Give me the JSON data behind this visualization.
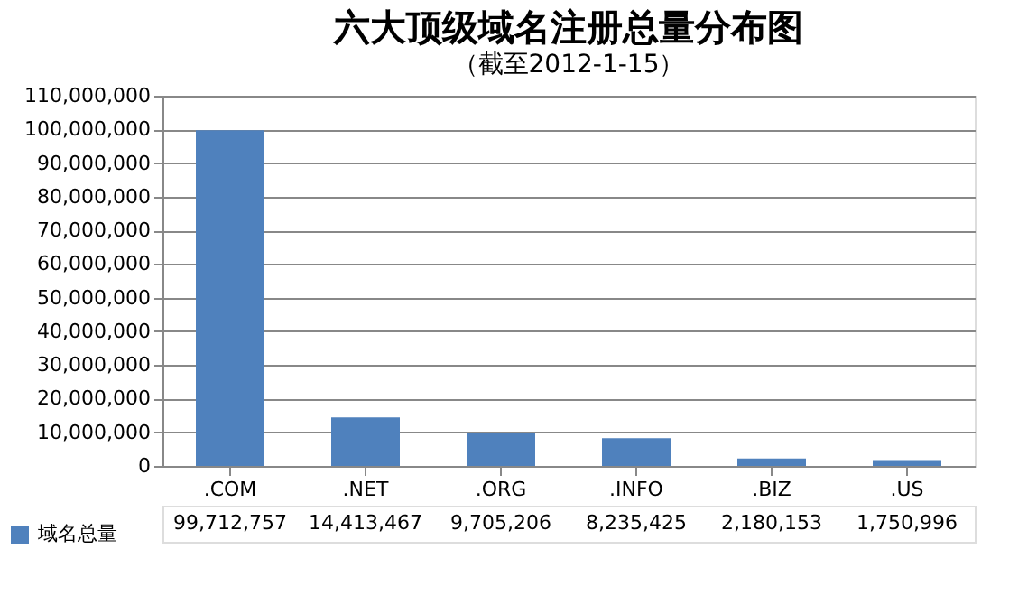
{
  "chart_data": {
    "type": "bar",
    "title": "六大顶级域名注册总量分布图",
    "subtitle": "（截至2012-1-15）",
    "categories": [
      ".COM",
      ".NET",
      ".ORG",
      ".INFO",
      ".BIZ",
      ".US"
    ],
    "series": [
      {
        "name": "域名总量",
        "color": "#4f81bd",
        "values": [
          99712757,
          14413467,
          9705206,
          8235425,
          2180153,
          1750996
        ],
        "value_labels": [
          "99,712,757",
          "14,413,467",
          "9,705,206",
          "8,235,425",
          "2,180,153",
          "1,750,996"
        ]
      }
    ],
    "ylim": [
      0,
      110000000
    ],
    "yticks": [
      0,
      {
        "value": 10000000,
        "label": "10,000,000"
      },
      {
        "value": 20000000,
        "label": "20,000,000"
      },
      {
        "value": 30000000,
        "label": "30,000,000"
      },
      {
        "value": 40000000,
        "label": "40,000,000"
      },
      {
        "value": 50000000,
        "label": "50,000,000"
      },
      {
        "value": 60000000,
        "label": "60,000,000"
      },
      {
        "value": 70000000,
        "label": "70,000,000"
      },
      {
        "value": 80000000,
        "label": "80,000,000"
      },
      {
        "value": 90000000,
        "label": "90,000,000"
      },
      {
        "value": 100000000,
        "label": "100,000,000"
      },
      {
        "value": 110000000,
        "label": "110,000,000"
      }
    ],
    "grid": "y",
    "legend": "bottom left"
  }
}
